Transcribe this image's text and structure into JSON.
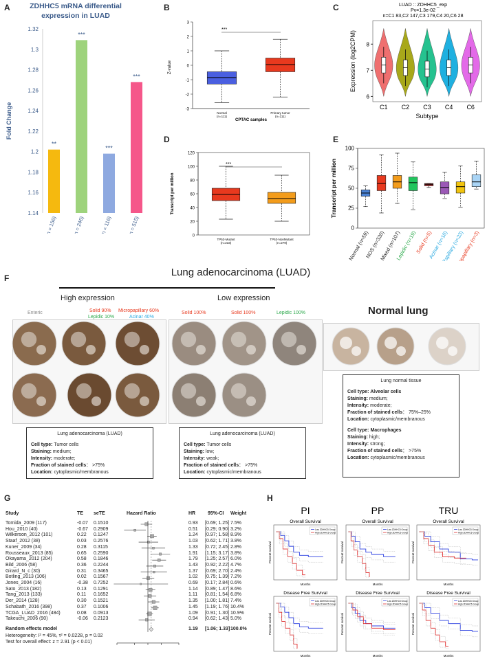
{
  "panels": {
    "A": "A",
    "B": "B",
    "C": "C",
    "D": "D",
    "E": "E",
    "F": "F",
    "G": "G",
    "H": "H"
  },
  "panelA": {
    "title_line1": "ZDHHC5 mRNA differential",
    "title_line2": "expression in LUAD",
    "chart_data": {
      "type": "bar",
      "ylabel": "Fold Change",
      "ylim": [
        1.14,
        1.32
      ],
      "yticks": [
        "1.32",
        "1.3",
        "1.28",
        "1.26",
        "1.24",
        "1.22",
        "1.2",
        "1.18",
        "1.16",
        "1.14"
      ],
      "categories": [
        "Hou Lung (n = 156)",
        "Okayama Lung (n = 246)",
        "Selamat Lung (n = 116)",
        "TCGA (n = 515)"
      ],
      "values": [
        1.202,
        1.309,
        1.198,
        1.268
      ],
      "significance": [
        "**",
        "***",
        "***",
        "***"
      ],
      "colors": [
        "#f5b90f",
        "#9ed37c",
        "#8ea9e0",
        "#f5578a"
      ]
    }
  },
  "panelB": {
    "chart_data": {
      "type": "box",
      "xlabel": "CPTAC samples",
      "ylabel": "Z-value",
      "ylim": [
        -3,
        3
      ],
      "yticks": [
        "3",
        "2",
        "1",
        "0",
        "-1",
        "-2",
        "-3"
      ],
      "sig": "***",
      "groups": [
        {
          "name": "Normal",
          "n": "(n=111)",
          "min": -2.6,
          "q1": -1.3,
          "median": -0.85,
          "q3": -0.45,
          "max": 1.0,
          "color": "#4a5fe0"
        },
        {
          "name": "Primary tumor",
          "n": "(n=111)",
          "min": -2.2,
          "q1": -0.45,
          "median": 0.05,
          "q3": 0.5,
          "max": 1.8,
          "color": "#e8391e"
        }
      ]
    }
  },
  "panelC": {
    "chart_data": {
      "type": "violin",
      "title": "LUAD :: ZDHHC5_exp",
      "subtitle": "Pv=1.3e-02",
      "counts": "n=C1 83,C2 147,C3 179,C4 20,C6 28",
      "ylabel": "Expression (log2CPM)",
      "xlabel": "Subtype",
      "ylim": [
        5.8,
        8.9
      ],
      "yticks": [
        "8",
        "7",
        "6"
      ],
      "categories": [
        "C1",
        "C2",
        "C3",
        "C4",
        "C6"
      ],
      "medians": [
        7.2,
        7.1,
        7.05,
        7.1,
        7.2
      ],
      "colors": [
        "#ef6f6f",
        "#a8a81a",
        "#25c28f",
        "#1fb0e0",
        "#e36ae8"
      ]
    }
  },
  "panelD": {
    "chart_data": {
      "type": "box",
      "ylabel": "Transcript per million",
      "ylim": [
        0,
        120
      ],
      "yticks": [
        "120",
        "100",
        "80",
        "60",
        "40",
        "20",
        "0"
      ],
      "sig": "***",
      "groups": [
        {
          "name": "TP53-Mutant",
          "n": "(n=233)",
          "min": 23,
          "q1": 50,
          "median": 59,
          "q3": 68,
          "max": 100,
          "color": "#e8391e"
        },
        {
          "name": "TP53-NonMutant",
          "n": "(n=279)",
          "min": 20,
          "q1": 46,
          "median": 53,
          "q3": 62,
          "max": 87,
          "color": "#f39c1b"
        }
      ]
    }
  },
  "panelE": {
    "chart_data": {
      "type": "box",
      "ylabel": "Transcript per million",
      "ylim": [
        0,
        100
      ],
      "yticks": [
        "100",
        "75",
        "50",
        "25",
        "0"
      ],
      "groups": [
        {
          "name": "Normal",
          "n": "(n=59)",
          "min": 27,
          "q1": 40,
          "median": 44,
          "q3": 48,
          "max": 53,
          "color": "#4c84d6",
          "lcolor": "#222"
        },
        {
          "name": "NOS",
          "n": "(n=320)",
          "min": 19,
          "q1": 47,
          "median": 56,
          "q3": 66,
          "max": 92,
          "color": "#e8391e",
          "lcolor": "#222"
        },
        {
          "name": "Mixed",
          "n": "(n=107)",
          "min": 31,
          "q1": 50,
          "median": 58,
          "q3": 66,
          "max": 94,
          "color": "#f39c1b",
          "lcolor": "#222"
        },
        {
          "name": "Lepidic",
          "n": "(n=19)",
          "min": 23,
          "q1": 47,
          "median": 57,
          "q3": 64,
          "max": 83,
          "color": "#21c55d",
          "lcolor": "#2aa84a"
        },
        {
          "name": "Solid",
          "n": "(n=5)",
          "min": 51,
          "q1": 53,
          "median": 55,
          "q3": 56,
          "max": 56,
          "color": "#a52a2a",
          "lcolor": "#e8391e"
        },
        {
          "name": "Acinar",
          "n": "(n=18)",
          "min": 37,
          "q1": 43,
          "median": 51,
          "q3": 58,
          "max": 70,
          "color": "#9b59b6",
          "lcolor": "#29a9e0"
        },
        {
          "name": "Papillary",
          "n": "(n=23)",
          "min": 26,
          "q1": 44,
          "median": 52,
          "q3": 58,
          "max": 78,
          "color": "#f1c40f",
          "lcolor": "#29a9e0"
        },
        {
          "name": "Micropapillary",
          "n": "(n=3)",
          "min": 49,
          "q1": 52,
          "median": 58,
          "q3": 67,
          "max": 84,
          "color": "#a9d4f5",
          "lcolor": "#e8391e"
        }
      ]
    }
  },
  "panelF": {
    "title": "Lung adenocarcinoma (LUAD)",
    "high_label": "High expression",
    "low_label": "Low expression",
    "normal_label": "Normal lung",
    "high_sub": [
      {
        "text": "Enteric",
        "color": "#888888"
      },
      {
        "text": "Solid 90%",
        "color": "#e8391e"
      },
      {
        "text": "Lepidic 10%",
        "color": "#2aa84a"
      },
      {
        "text": "Micropapillary 60%",
        "color": "#e8391e"
      },
      {
        "text": "Acinar 40%",
        "color": "#29a9e0"
      }
    ],
    "low_sub": [
      {
        "text": "Solid 100%",
        "color": "#e8391e"
      },
      {
        "text": "Solid 100%",
        "color": "#e8391e"
      },
      {
        "text": "Lepidic 100%",
        "color": "#2aa84a"
      }
    ],
    "box_high": {
      "title": "Lung adenocarcinoma (LUAD)",
      "rows": [
        {
          "k": "Cell type:",
          "v": " Tumor cells"
        },
        {
          "k": "Staining:",
          "v": " medium;"
        },
        {
          "k": "Intensity:",
          "v": " moderate;"
        },
        {
          "k": "Fraction of stained cells",
          "v": "：  >75%"
        },
        {
          "k": "Location:",
          "v": " cytoplasmic/membranous"
        }
      ]
    },
    "box_low": {
      "title": "Lung adenocarcinoma (LUAD)",
      "rows": [
        {
          "k": "Cell type:",
          "v": " Tumor cells"
        },
        {
          "k": "Staining:",
          "v": " low;"
        },
        {
          "k": "Intensity:",
          "v": " weak;"
        },
        {
          "k": "Fraction of stained cells",
          "v": "：  >75%"
        },
        {
          "k": "Location:",
          "v": " cytoplasmic/membranous"
        }
      ]
    },
    "box_normal": {
      "title": "Lung normal tissue",
      "rows1": [
        {
          "k": "Cell type: Alveolar cells",
          "v": ""
        },
        {
          "k": "Staining:",
          "v": " medium;"
        },
        {
          "k": "Intensity:",
          "v": " moderate;"
        },
        {
          "k": "Fraction of stained cells",
          "v": "：  75%–25%"
        },
        {
          "k": "Location:",
          "v": " cytoplasmic/membranous"
        }
      ],
      "rows2": [
        {
          "k": "Cell type: Macrophages",
          "v": ""
        },
        {
          "k": "Staining:",
          "v": " high;"
        },
        {
          "k": "Intensity:",
          "v": " strong;"
        },
        {
          "k": "Fraction of stained cells",
          "v": "：  >75%"
        },
        {
          "k": "Location:",
          "v": " cytoplasmic/membranous"
        }
      ]
    }
  },
  "panelG": {
    "headers": {
      "study": "Study",
      "te": "TE",
      "sete": "seTE",
      "hr_plot": "Hazard Ratio",
      "hr": "HR",
      "ci": "95%-CI",
      "weight": "Weight"
    },
    "chart_data": {
      "type": "forest",
      "xticks": [
        "0.2",
        "0.5",
        "1",
        "2",
        "5"
      ],
      "studies": [
        {
          "study": "Tomida_2009 (117)",
          "te": "-0.07",
          "sete": "0.1510",
          "hr": 0.93,
          "lo": 0.69,
          "hi": 1.25,
          "hr_s": "0.93",
          "ci": "[0.69; 1.25]",
          "w": "7.5%"
        },
        {
          "study": "Hou_2010 (40)",
          "te": "-0.67",
          "sete": "0.2909",
          "hr": 0.51,
          "lo": 0.29,
          "hi": 0.9,
          "hr_s": "0.51",
          "ci": "[0.29; 0.90]",
          "w": "3.2%"
        },
        {
          "study": "Wilkerson_2012 (101)",
          "te": "0.22",
          "sete": "0.1247",
          "hr": 1.24,
          "lo": 0.97,
          "hi": 1.58,
          "hr_s": "1.24",
          "ci": "[0.97; 1.58]",
          "w": "8.9%"
        },
        {
          "study": "Staaf_2012 (38)",
          "te": "0.03",
          "sete": "0.2576",
          "hr": 1.03,
          "lo": 0.62,
          "hi": 1.71,
          "hr_s": "1.03",
          "ci": "[0.62; 1.71]",
          "w": "3.8%"
        },
        {
          "study": "Kuner_2009 (34)",
          "te": "0.28",
          "sete": "0.3115",
          "hr": 1.33,
          "lo": 0.72,
          "hi": 2.45,
          "hr_s": "1.33",
          "ci": "[0.72; 2.45]",
          "w": "2.8%"
        },
        {
          "study": "Rousseaux_2013 (85)",
          "te": "0.65",
          "sete": "0.2590",
          "hr": 1.91,
          "lo": 1.15,
          "hi": 3.17,
          "hr_s": "1.91",
          "ci": "[1.15; 3.17]",
          "w": "3.8%"
        },
        {
          "study": "Okayama_2012 (204)",
          "te": "0.58",
          "sete": "0.1846",
          "hr": 1.79,
          "lo": 1.25,
          "hi": 2.57,
          "hr_s": "1.79",
          "ci": "[1.25; 2.57]",
          "w": "6.0%"
        },
        {
          "study": "Bild_2006 (58)",
          "te": "0.36",
          "sete": "0.2244",
          "hr": 1.43,
          "lo": 0.92,
          "hi": 2.22,
          "hr_s": "1.43",
          "ci": "[0.92; 2.22]",
          "w": "4.7%"
        },
        {
          "study": "Girard_N_c (30)",
          "te": "0.31",
          "sete": "0.3465",
          "hr": 1.37,
          "lo": 0.69,
          "hi": 2.7,
          "hr_s": "1.37",
          "ci": "[0.69; 2.70]",
          "w": "2.4%"
        },
        {
          "study": "Botling_2013 (106)",
          "te": "0.02",
          "sete": "0.1567",
          "hr": 1.02,
          "lo": 0.75,
          "hi": 1.39,
          "hr_s": "1.02",
          "ci": "[0.75; 1.39]",
          "w": "7.2%"
        },
        {
          "study": "Jones_2004 (16)",
          "te": "-0.38",
          "sete": "0.7252",
          "hr": 0.69,
          "lo": 0.17,
          "hi": 2.84,
          "hr_s": "0.69",
          "ci": "[0.17; 2.84]",
          "w": "0.6%"
        },
        {
          "study": "Sato_2013 (182)",
          "te": "0.13",
          "sete": "0.1291",
          "hr": 1.14,
          "lo": 0.89,
          "hi": 1.47,
          "hr_s": "1.14",
          "ci": "[0.89; 1.47]",
          "w": "8.6%"
        },
        {
          "study": "Tang_2013 (133)",
          "te": "0.11",
          "sete": "0.1652",
          "hr": 1.11,
          "lo": 0.81,
          "hi": 1.54,
          "hr_s": "1.11",
          "ci": "[0.81; 1.54]",
          "w": "6.8%"
        },
        {
          "study": "Der_2014 (128)",
          "te": "0.30",
          "sete": "0.1521",
          "hr": 1.35,
          "lo": 1.0,
          "hi": 1.81,
          "hr_s": "1.35",
          "ci": "[1.00; 1.81]",
          "w": "7.4%"
        },
        {
          "study": "Schabath_2016 (398)",
          "te": "0.37",
          "sete": "0.1006",
          "hr": 1.45,
          "lo": 1.19,
          "hi": 1.76,
          "hr_s": "1.45",
          "ci": "[1.19; 1.76]",
          "w": "10.4%"
        },
        {
          "study": "TCGA_LUAD_2016 (484)",
          "te": "0.08",
          "sete": "0.0913",
          "hr": 1.09,
          "lo": 0.91,
          "hi": 1.3,
          "hr_s": "1.09",
          "ci": "[0.91; 1.30]",
          "w": "10.9%"
        },
        {
          "study": "Takeuchi_2006 (90)",
          "te": "-0.06",
          "sete": "0.2123",
          "hr": 0.94,
          "lo": 0.62,
          "hi": 1.43,
          "hr_s": "0.94",
          "ci": "[0.62; 1.43]",
          "w": "5.0%"
        }
      ],
      "summary": {
        "label": "Random effects model",
        "hr": 1.19,
        "lo": 1.06,
        "hi": 1.33,
        "hr_s": "1.19",
        "ci": "[1.06; 1.33]",
        "w": "100.0%"
      },
      "heterogeneity": "Heterogeneity: I² = 45%, τ² = 0.0228, p = 0.02",
      "overall": "Test for overall effect: z = 2.91 (p < 0.01)"
    }
  },
  "panelH": {
    "cols": [
      "PI",
      "PP",
      "TRU"
    ],
    "os_title": "Overall Survival",
    "dfs_title": "Disease Free Survival",
    "xlabel": "Months",
    "ylabel": "Percent survival",
    "legend_low": "Low ZDHHC5 Group",
    "legend_high": "High ZDHHC5 Group"
  }
}
